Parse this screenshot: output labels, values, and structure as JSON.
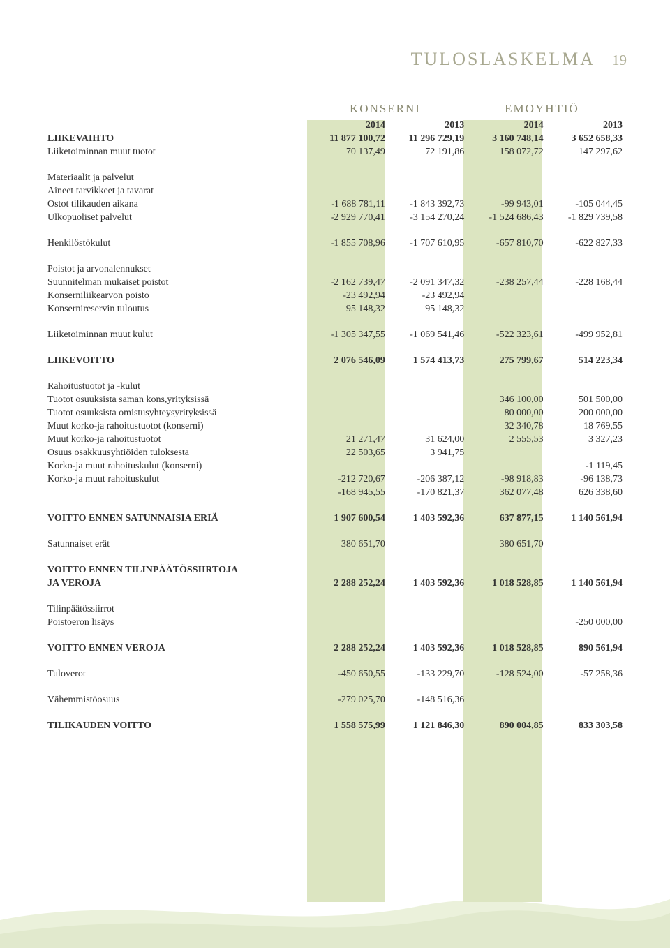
{
  "page": {
    "title": "TULOSLASKELMA",
    "number": "19",
    "group_labels": {
      "konserni": "KONSERNI",
      "emoyhtio": "EMOYHTIÖ"
    }
  },
  "colors": {
    "title_color": "#a8a890",
    "highlight_bg": "#dce5c1",
    "text_color": "#333333",
    "footer_wave1": "#d8e4b8",
    "footer_wave2": "#b8cc88"
  },
  "years": {
    "c1": "2014",
    "c2": "2013",
    "c3": "2014",
    "c4": "2013"
  },
  "rows": [
    {
      "type": "row",
      "bold": true,
      "label": "LIIKEVAIHTO",
      "c1": "11 877 100,72",
      "c2": "11 296 729,19",
      "c3": "3 160 748,14",
      "c4": "3 652 658,33"
    },
    {
      "type": "row",
      "label": "Liiketoiminnan muut tuotot",
      "c1": "70 137,49",
      "c2": "72 191,86",
      "c3": "158 072,72",
      "c4": "147 297,62"
    },
    {
      "type": "spacer"
    },
    {
      "type": "row",
      "label": "Materiaalit ja palvelut"
    },
    {
      "type": "row",
      "indent": 1,
      "label": "Aineet  tarvikkeet ja tavarat"
    },
    {
      "type": "row",
      "indent": 2,
      "label": "Ostot tilikauden aikana",
      "c1": "-1 688 781,11",
      "c2": "-1 843 392,73",
      "c3": "-99 943,01",
      "c4": "-105 044,45"
    },
    {
      "type": "row",
      "indent": 1,
      "label": "Ulkopuoliset palvelut",
      "c1": "-2 929 770,41",
      "c2": "-3 154 270,24",
      "c3": "-1 524 686,43",
      "c4": "-1 829 739,58"
    },
    {
      "type": "spacer"
    },
    {
      "type": "row",
      "label": "Henkilöstökulut",
      "c1": "-1 855 708,96",
      "c2": "-1 707 610,95",
      "c3": "-657 810,70",
      "c4": "-622 827,33"
    },
    {
      "type": "spacer"
    },
    {
      "type": "row",
      "label": "Poistot ja arvonalennukset"
    },
    {
      "type": "row",
      "indent": 1,
      "label": "Suunnitelman mukaiset poistot",
      "c1": "-2 162 739,47",
      "c2": "-2 091 347,32",
      "c3": "-238 257,44",
      "c4": "-228 168,44"
    },
    {
      "type": "row",
      "indent": 1,
      "label": "Konserniliikearvon poisto",
      "c1": "-23 492,94",
      "c2": "-23 492,94"
    },
    {
      "type": "row",
      "indent": 1,
      "label": "Konsernireservin tuloutus",
      "c1": "95 148,32",
      "c2": "95 148,32"
    },
    {
      "type": "spacer"
    },
    {
      "type": "row",
      "label": "Liiketoiminnan muut kulut",
      "c1": "-1 305 347,55",
      "c2": "-1 069 541,46",
      "c3": "-522 323,61",
      "c4": "-499 952,81"
    },
    {
      "type": "spacer"
    },
    {
      "type": "row",
      "bold": true,
      "label": "LIIKEVOITTO",
      "c1": "2 076 546,09",
      "c2": "1 574 413,73",
      "c3": "275 799,67",
      "c4": "514 223,34"
    },
    {
      "type": "spacer"
    },
    {
      "type": "row",
      "label": "Rahoitustuotot ja -kulut"
    },
    {
      "type": "row",
      "indent": 1,
      "label": "Tuotot osuuksista saman kons,yrityksissä",
      "c3": "346 100,00",
      "c4": "501 500,00"
    },
    {
      "type": "row",
      "indent": 1,
      "label": "Tuotot osuuksista omistusyhteysyrityksissä",
      "c3": "80 000,00",
      "c4": "200 000,00"
    },
    {
      "type": "row",
      "indent": 1,
      "label": "Muut korko-ja rahoitustuotot (konserni)",
      "c3": "32 340,78",
      "c4": "18 769,55"
    },
    {
      "type": "row",
      "indent": 1,
      "label": "Muut korko-ja rahoitustuotot",
      "c1": "21 271,47",
      "c2": "31 624,00",
      "c3": "2 555,53",
      "c4": "3 327,23"
    },
    {
      "type": "row",
      "indent": 1,
      "label": "Osuus osakkuusyhtiöiden tuloksesta",
      "c1": "22 503,65",
      "c2": "3 941,75"
    },
    {
      "type": "row",
      "indent": 1,
      "label": "Korko-ja muut rahoituskulut (konserni)",
      "c4": "-1 119,45"
    },
    {
      "type": "row",
      "indent": 1,
      "label": "Korko-ja muut rahoituskulut",
      "c1": "-212 720,67",
      "c2": "-206 387,12",
      "c3": "-98 918,83",
      "c4": "-96 138,73"
    },
    {
      "type": "row",
      "c1": "-168 945,55",
      "c2": "-170 821,37",
      "c3": "362 077,48",
      "c4": "626 338,60"
    },
    {
      "type": "spacer"
    },
    {
      "type": "row",
      "bold": true,
      "label": "VOITTO ENNEN SATUNNAISIA ERIÄ",
      "c1": "1 907 600,54",
      "c2": "1 403 592,36",
      "c3": "637 877,15",
      "c4": "1 140 561,94"
    },
    {
      "type": "spacer"
    },
    {
      "type": "row",
      "indent": 1,
      "label": "Satunnaiset erät",
      "c1": "380 651,70",
      "c3": "380 651,70"
    },
    {
      "type": "spacer"
    },
    {
      "type": "row",
      "bold": true,
      "label": "VOITTO ENNEN TILINPÄÄTÖSSIIRTOJA"
    },
    {
      "type": "row",
      "bold": true,
      "label": "JA VEROJA",
      "c1": "2 288 252,24",
      "c2": "1 403 592,36",
      "c3": "1 018 528,85",
      "c4": "1 140 561,94"
    },
    {
      "type": "spacer"
    },
    {
      "type": "row",
      "label": "Tilinpäätössiirrot"
    },
    {
      "type": "row",
      "indent": 1,
      "label": "Poistoeron lisäys",
      "c4": "-250 000,00"
    },
    {
      "type": "spacer"
    },
    {
      "type": "row",
      "bold": true,
      "label": "VOITTO ENNEN VEROJA",
      "c1": "2 288 252,24",
      "c2": "1 403 592,36",
      "c3": "1 018 528,85",
      "c4": "890 561,94"
    },
    {
      "type": "spacer"
    },
    {
      "type": "row",
      "label": "Tuloverot",
      "c1": "-450 650,55",
      "c2": "-133 229,70",
      "c3": "-128 524,00",
      "c4": "-57 258,36"
    },
    {
      "type": "spacer"
    },
    {
      "type": "row",
      "label": "Vähemmistöosuus",
      "c1": "-279 025,70",
      "c2": "-148 516,36"
    },
    {
      "type": "spacer"
    },
    {
      "type": "row",
      "bold": true,
      "label": "TILIKAUDEN VOITTO",
      "c1": "1 558 575,99",
      "c2": "1 121 846,30",
      "c3": "890 004,85",
      "c4": "833 303,58"
    }
  ]
}
